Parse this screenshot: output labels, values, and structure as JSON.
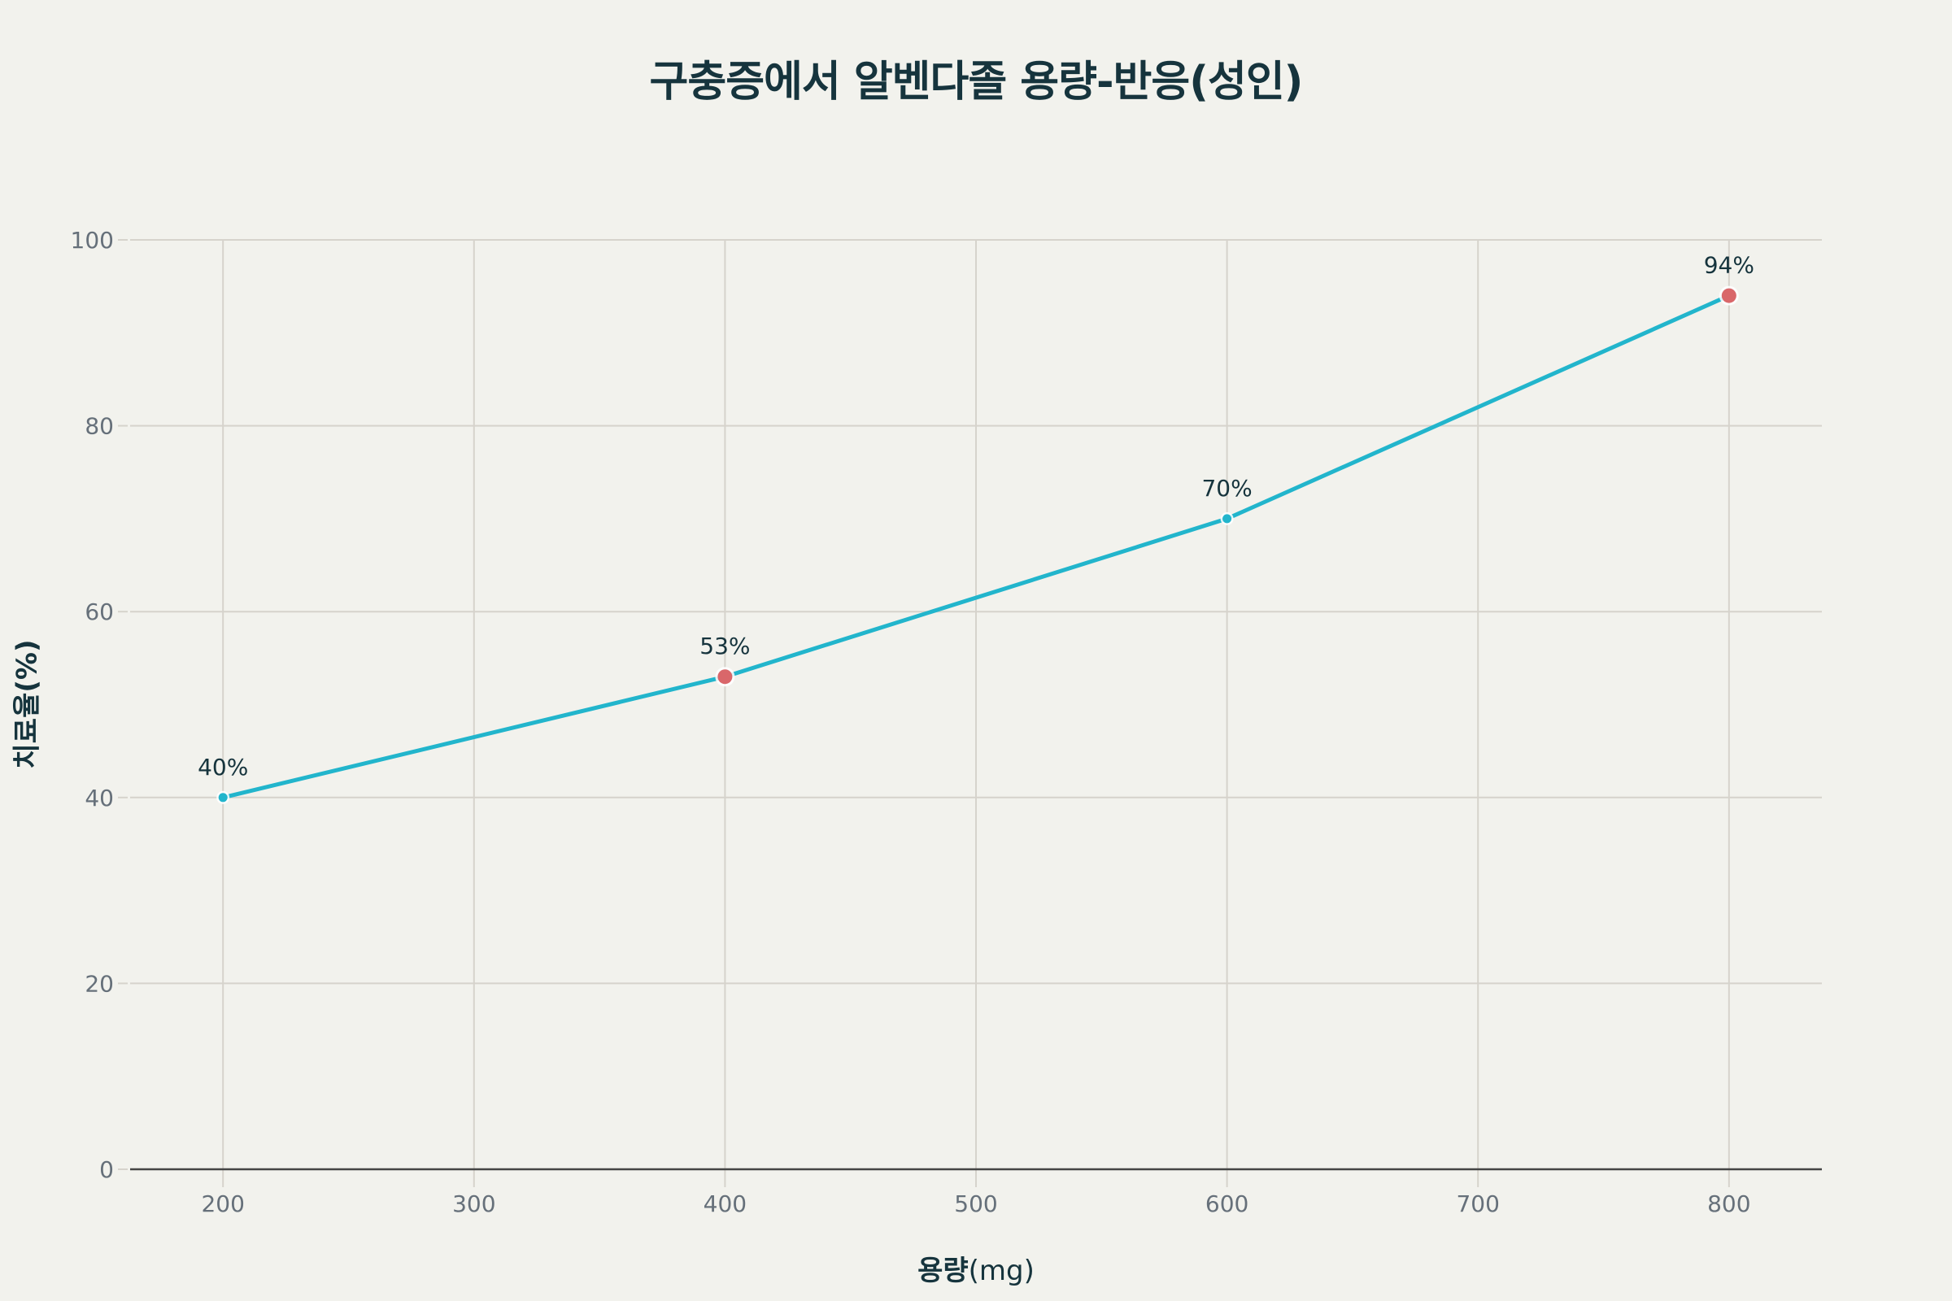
{
  "chart_data": {
    "type": "line",
    "title": "구충증에서 알벤다졸 용량-반응(성인)",
    "xlabel": "용량(mg)",
    "xlabel_parts": {
      "bold": "용량",
      "normal": "(mg)"
    },
    "ylabel": "치료율(%)",
    "x": [
      200,
      400,
      600,
      800
    ],
    "values": [
      40,
      53,
      70,
      94
    ],
    "data_labels": [
      "40%",
      "53%",
      "70%",
      "94%"
    ],
    "highlighted_points": [
      400,
      800
    ],
    "xlim": [
      163,
      837
    ],
    "ylim": [
      0,
      100
    ],
    "x_ticks": [
      200,
      300,
      400,
      500,
      600,
      700,
      800
    ],
    "y_ticks": [
      0,
      20,
      40,
      60,
      80,
      100
    ],
    "grid": true,
    "legend": null,
    "colors": {
      "line": "#22b5cc",
      "marker_normal": "#22b5cc",
      "marker_highlight": "#d9676a",
      "background": "#f2f2ed",
      "grid": "#d6d3cc",
      "axis": "#454545",
      "title": "#16343d"
    }
  }
}
